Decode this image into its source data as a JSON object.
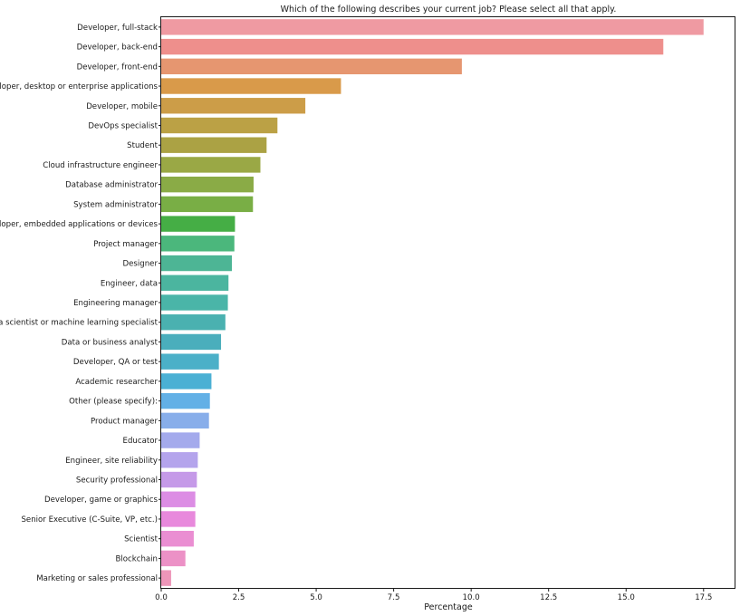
{
  "chart_data": {
    "type": "bar",
    "orientation": "horizontal",
    "title": "Which of the following describes your current job? Please select all that apply.",
    "xlabel": "Percentage",
    "ylabel": "",
    "xlim": [
      0,
      18.5
    ],
    "xticks": [
      0,
      2.5,
      5,
      7.5,
      10,
      12.5,
      15,
      17.5
    ],
    "xtick_labels": [
      "0.0",
      "2.5",
      "5.0",
      "7.5",
      "10.0",
      "12.5",
      "15.0",
      "17.5"
    ],
    "grid": false,
    "categories": [
      "Developer, full-stack",
      "Developer, back-end",
      "Developer, front-end",
      "Developer, desktop or enterprise applications",
      "Developer, mobile",
      "DevOps specialist",
      "Student",
      "Cloud infrastructure engineer",
      "Database administrator",
      "System administrator",
      "Developer, embedded applications or devices",
      "Project manager",
      "Designer",
      "Engineer, data",
      "Engineering manager",
      "Data scientist or machine learning specialist",
      "Data or business analyst",
      "Developer, QA or test",
      "Academic researcher",
      "Other (please specify):",
      "Product manager",
      "Educator",
      "Engineer, site reliability",
      "Security professional",
      "Developer, game or graphics",
      "Senior Executive (C-Suite, VP, etc.)",
      "Scientist",
      "Blockchain",
      "Marketing or sales professional"
    ],
    "values": [
      17.5,
      16.2,
      9.7,
      5.8,
      4.65,
      3.75,
      3.4,
      3.2,
      2.98,
      2.96,
      2.38,
      2.36,
      2.28,
      2.17,
      2.15,
      2.07,
      1.93,
      1.86,
      1.62,
      1.57,
      1.54,
      1.24,
      1.18,
      1.15,
      1.1,
      1.1,
      1.05,
      0.78,
      0.32
    ],
    "colors": [
      "#ef9aa2",
      "#ee8f8c",
      "#e69670",
      "#d99a4a",
      "#cc9d48",
      "#bba145",
      "#aba244",
      "#9aa845",
      "#8aab46",
      "#79ae45",
      "#45ae45",
      "#4bb77c",
      "#4db595",
      "#4bb59f",
      "#4ab5a8",
      "#4ab1b0",
      "#4aaebc",
      "#4bb0c8",
      "#4ab0d4",
      "#62b0e6",
      "#88aeea",
      "#a4aaec",
      "#b4a4ec",
      "#c59ae8",
      "#dc8de4",
      "#e889dc",
      "#ea8ed2",
      "#ec91c6",
      "#ee96b9"
    ]
  }
}
